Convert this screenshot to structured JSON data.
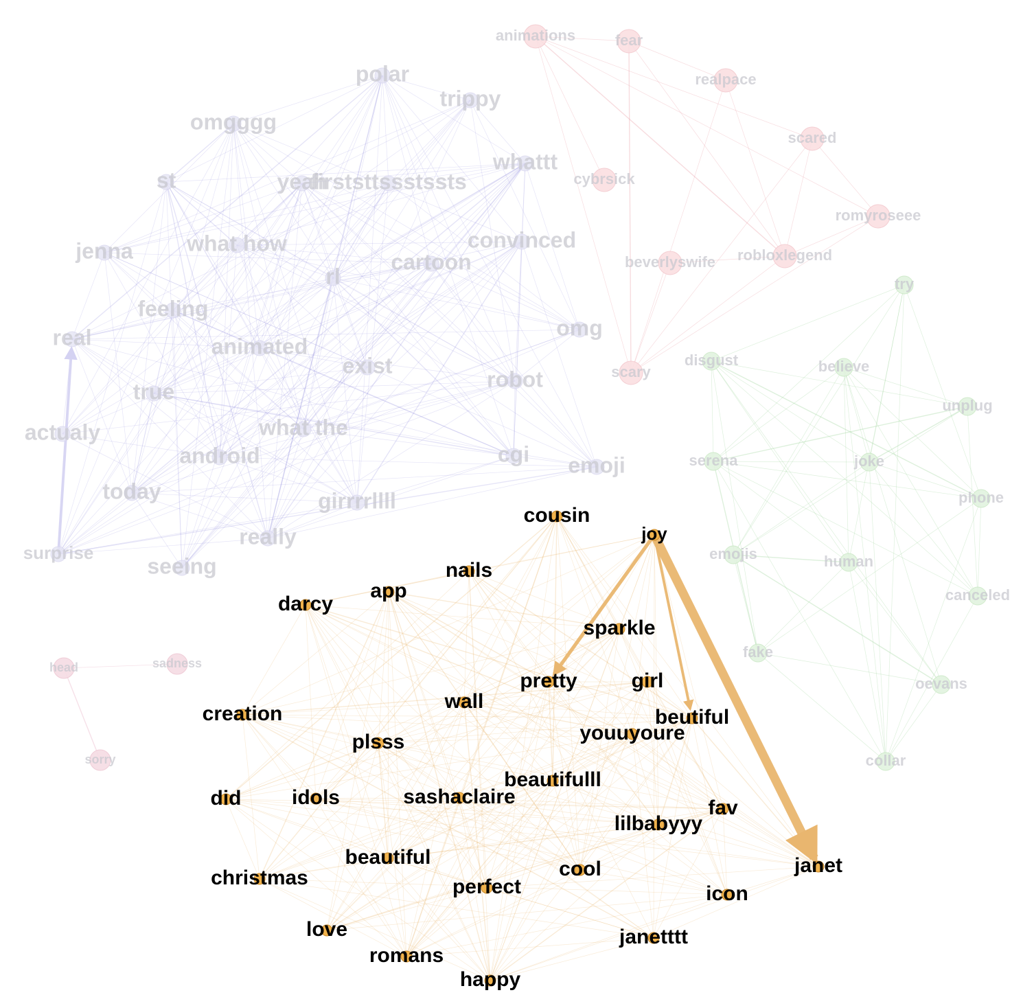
{
  "colors": {
    "purple": "#8a84d9",
    "red": "#e79aa2",
    "green": "#9fd49a",
    "pink": "#e6a6bd",
    "orange": "#e9b66f",
    "orange_node": "#f0b24c"
  },
  "clusters": [
    {
      "name": "purple",
      "highlighted": false,
      "nodes": [
        {
          "id": "polar",
          "label": "polar"
        },
        {
          "id": "trippy",
          "label": "trippy"
        },
        {
          "id": "omgg",
          "label": "omgggg"
        },
        {
          "id": "whattt",
          "label": "whattt"
        },
        {
          "id": "st",
          "label": "st"
        },
        {
          "id": "yeah",
          "label": "yeah"
        },
        {
          "id": "firsts",
          "label": "firststtssstssts"
        },
        {
          "id": "jenna",
          "label": "jenna"
        },
        {
          "id": "whathow",
          "label": "what how"
        },
        {
          "id": "convinced",
          "label": "convinced"
        },
        {
          "id": "cartoon",
          "label": "cartoon"
        },
        {
          "id": "rl",
          "label": "rl"
        },
        {
          "id": "feeling",
          "label": "feeling"
        },
        {
          "id": "real",
          "label": "real"
        },
        {
          "id": "omg",
          "label": "omg"
        },
        {
          "id": "animated",
          "label": "animated"
        },
        {
          "id": "exist",
          "label": "exist"
        },
        {
          "id": "robot",
          "label": "robot"
        },
        {
          "id": "true",
          "label": "true"
        },
        {
          "id": "actualy",
          "label": "actualy"
        },
        {
          "id": "whatthe",
          "label": "what the"
        },
        {
          "id": "android",
          "label": "android"
        },
        {
          "id": "cgi",
          "label": "cgi"
        },
        {
          "id": "emoji",
          "label": "emoji"
        },
        {
          "id": "today",
          "label": "today"
        },
        {
          "id": "girr",
          "label": "girrrrllll"
        },
        {
          "id": "really",
          "label": "really"
        },
        {
          "id": "surprise",
          "label": "surprise"
        },
        {
          "id": "seeing",
          "label": "seeing"
        }
      ]
    },
    {
      "name": "red",
      "highlighted": false,
      "nodes": [
        {
          "id": "animations",
          "label": "animations"
        },
        {
          "id": "fear",
          "label": "fear"
        },
        {
          "id": "realpace",
          "label": "realpace"
        },
        {
          "id": "scared",
          "label": "scared"
        },
        {
          "id": "cybrsick",
          "label": "cybrsick"
        },
        {
          "id": "romy",
          "label": "romyroseee"
        },
        {
          "id": "beverly",
          "label": "beverlyswife"
        },
        {
          "id": "roblox",
          "label": "robloxlegend"
        },
        {
          "id": "scary",
          "label": "scary"
        }
      ]
    },
    {
      "name": "green",
      "highlighted": false,
      "nodes": [
        {
          "id": "try",
          "label": "try"
        },
        {
          "id": "disgust",
          "label": "disgust"
        },
        {
          "id": "believe",
          "label": "believe"
        },
        {
          "id": "unplug",
          "label": "unplug"
        },
        {
          "id": "serena",
          "label": "serena"
        },
        {
          "id": "joke",
          "label": "joke"
        },
        {
          "id": "phone",
          "label": "phone"
        },
        {
          "id": "emojis",
          "label": "emojis"
        },
        {
          "id": "human",
          "label": "human"
        },
        {
          "id": "canceled",
          "label": "canceled"
        },
        {
          "id": "fake",
          "label": "fake"
        },
        {
          "id": "oevans",
          "label": "oevans"
        },
        {
          "id": "collar",
          "label": "collar"
        }
      ]
    },
    {
      "name": "pink",
      "highlighted": false,
      "nodes": [
        {
          "id": "head",
          "label": "head"
        },
        {
          "id": "sadness",
          "label": "sadness"
        },
        {
          "id": "sorry",
          "label": "sorry"
        }
      ]
    },
    {
      "name": "orange",
      "highlighted": true,
      "nodes": [
        {
          "id": "cousin",
          "label": "cousin"
        },
        {
          "id": "joy",
          "label": "joy"
        },
        {
          "id": "nails",
          "label": "nails"
        },
        {
          "id": "app",
          "label": "app"
        },
        {
          "id": "darcy",
          "label": "darcy"
        },
        {
          "id": "sparkle",
          "label": "sparkle"
        },
        {
          "id": "pretty",
          "label": "pretty"
        },
        {
          "id": "girl",
          "label": "girl"
        },
        {
          "id": "wall",
          "label": "wall"
        },
        {
          "id": "creation",
          "label": "creation"
        },
        {
          "id": "beutiful",
          "label": "beutiful"
        },
        {
          "id": "youu",
          "label": "youuyoure"
        },
        {
          "id": "plsss",
          "label": "plsss"
        },
        {
          "id": "beautifulll",
          "label": "beautifulll"
        },
        {
          "id": "did",
          "label": "did"
        },
        {
          "id": "idols",
          "label": "idols"
        },
        {
          "id": "sasha",
          "label": "sashaclaire"
        },
        {
          "id": "fav",
          "label": "fav"
        },
        {
          "id": "lilbaby",
          "label": "lilbabyyy"
        },
        {
          "id": "janet",
          "label": "janet"
        },
        {
          "id": "beautiful",
          "label": "beautiful"
        },
        {
          "id": "christmas",
          "label": "christmas"
        },
        {
          "id": "cool",
          "label": "cool"
        },
        {
          "id": "perfect",
          "label": "perfect"
        },
        {
          "id": "icon",
          "label": "icon"
        },
        {
          "id": "love",
          "label": "love"
        },
        {
          "id": "janetttt",
          "label": "janetttt"
        },
        {
          "id": "romans",
          "label": "romans"
        },
        {
          "id": "happy",
          "label": "happy"
        }
      ]
    }
  ],
  "directed_edges": [
    {
      "from": "joy",
      "to": "janet",
      "weight": 5
    },
    {
      "from": "joy",
      "to": "pretty",
      "weight": 2
    },
    {
      "from": "joy",
      "to": "beutiful",
      "weight": 1.5
    },
    {
      "from": "surprise",
      "to": "real",
      "weight": 1.5
    }
  ]
}
